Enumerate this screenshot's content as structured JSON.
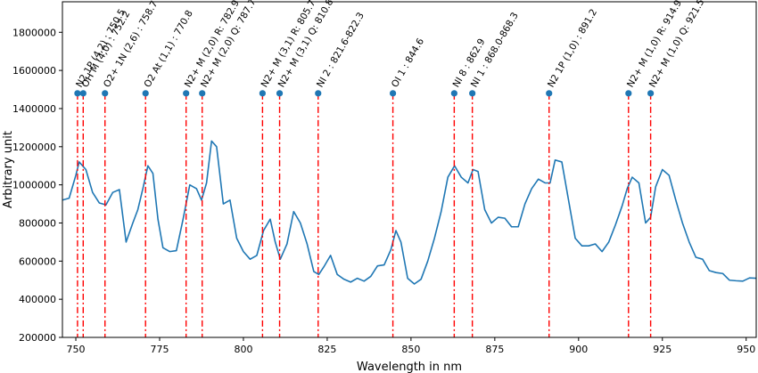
{
  "chart_data": {
    "type": "line",
    "title": "",
    "xlabel": "Wavelength in nm",
    "ylabel": "Arbitrary unit",
    "xlim": [
      746,
      953
    ],
    "ylim": [
      200000,
      1960000
    ],
    "x_ticks": [
      "750",
      "775",
      "800",
      "825",
      "850",
      "875",
      "900",
      "925",
      "950"
    ],
    "y_ticks": [
      "200000",
      "400000",
      "600000",
      "800000",
      "1000000",
      "1200000",
      "1400000",
      "1600000",
      "1800000"
    ],
    "grid": false,
    "legend": "none",
    "series": [
      {
        "color": "#1f77b4",
        "x": [
          746,
          748,
          750,
          751,
          753,
          755,
          757,
          759,
          761,
          763,
          765,
          767,
          768.5,
          770,
          771.5,
          773,
          774.5,
          776,
          778,
          780,
          782,
          784,
          786,
          787.5,
          789,
          790.5,
          792,
          794,
          796,
          798,
          800,
          802,
          804,
          806,
          808,
          809.5,
          811,
          813,
          815,
          817,
          819,
          821,
          822.5,
          824,
          826,
          828,
          830,
          832,
          834,
          836,
          838,
          840,
          842,
          844,
          845.5,
          847,
          849,
          851,
          853,
          855,
          857,
          859,
          861,
          863,
          865,
          867,
          868.5,
          870,
          872,
          874,
          876,
          878,
          880,
          882,
          884,
          886,
          888,
          890,
          891.5,
          893,
          895,
          897,
          899,
          901,
          903,
          905,
          907,
          909,
          911,
          913,
          914.5,
          916,
          918,
          920,
          921.5,
          923,
          925,
          927,
          929,
          931,
          933,
          935,
          937,
          939,
          941,
          943,
          945,
          947,
          949,
          951,
          953
        ],
        "y": [
          920000,
          930000,
          1050000,
          1120000,
          1080000,
          960000,
          905000,
          895000,
          960000,
          975000,
          700000,
          800000,
          870000,
          980000,
          1100000,
          1060000,
          820000,
          670000,
          650000,
          655000,
          820000,
          1000000,
          980000,
          920000,
          1010000,
          1230000,
          1200000,
          900000,
          920000,
          720000,
          650000,
          610000,
          630000,
          760000,
          820000,
          700000,
          610000,
          690000,
          860000,
          800000,
          690000,
          545000,
          530000,
          570000,
          630000,
          530000,
          505000,
          490000,
          510000,
          495000,
          520000,
          575000,
          580000,
          660000,
          760000,
          700000,
          510000,
          480000,
          505000,
          600000,
          720000,
          860000,
          1040000,
          1100000,
          1040000,
          1010000,
          1080000,
          1070000,
          870000,
          800000,
          830000,
          825000,
          780000,
          780000,
          900000,
          980000,
          1030000,
          1010000,
          1010000,
          1130000,
          1120000,
          920000,
          720000,
          680000,
          680000,
          690000,
          650000,
          700000,
          790000,
          890000,
          980000,
          1040000,
          1010000,
          800000,
          830000,
          990000,
          1080000,
          1050000,
          920000,
          800000,
          700000,
          620000,
          610000,
          550000,
          540000,
          535000,
          500000,
          497000,
          495000,
          512000,
          510000
        ]
      }
    ],
    "annotations": [
      {
        "x": 750.5,
        "label": "N2 1P (4,2) : 750.5"
      },
      {
        "x": 752.2,
        "label": "OH M (4,0) : 752.2"
      },
      {
        "x": 758.7,
        "label": "O2+ 1N (2,6) : 758.7"
      },
      {
        "x": 770.8,
        "label": "O2 At (1,1) : 770.8"
      },
      {
        "x": 782.9,
        "label": "N2+ M (2,0) R: 782.9"
      },
      {
        "x": 787.7,
        "label": "N2+ M (2,0) Q: 787.7"
      },
      {
        "x": 805.7,
        "label": "N2+ M (3,1) R: 805.7"
      },
      {
        "x": 810.8,
        "label": "N2+ M (3,1) Q: 810.8"
      },
      {
        "x": 822.3,
        "label": "NI 2 : 821.6-822.3"
      },
      {
        "x": 844.6,
        "label": "OI 1 : 844.6"
      },
      {
        "x": 862.9,
        "label": "NI 8 : 862.9"
      },
      {
        "x": 868.3,
        "label": "NI 1 : 868.0-868.3"
      },
      {
        "x": 891.2,
        "label": "N2 1P (1,0) : 891.2"
      },
      {
        "x": 914.9,
        "label": "N2+ M (1,0) R: 914.9"
      },
      {
        "x": 921.5,
        "label": "N2+ M (1,0) Q: 921.5"
      }
    ],
    "annotation_marker_y": 1480000,
    "line_color": "#1f77b4",
    "marker_color": "#1f77b4",
    "annotation_line_color": "#ff0000"
  }
}
